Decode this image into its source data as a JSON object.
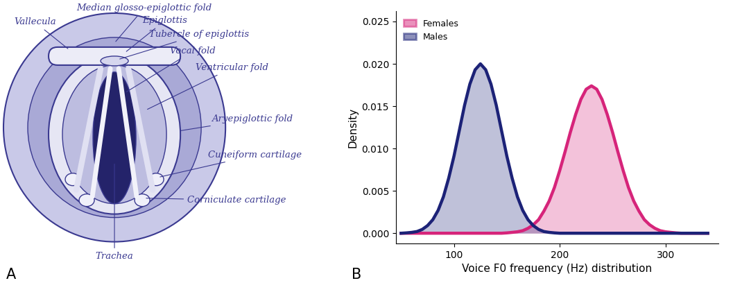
{
  "diagram": {
    "panel_label": "A",
    "labels": [
      "Vallecula",
      "Median glosso-epiglottic fold",
      "Epiglottis",
      "Tubercle of epiglottis",
      "Vocal fold",
      "Ventricular fold",
      "Aryepiglottic fold",
      "Cuneiform cartilage",
      "Corniculate cartilage",
      "Trachea"
    ]
  },
  "chart_data": {
    "panel_label": "B",
    "type": "area",
    "x_label": "Voice F0 frequency (Hz) distribution",
    "y_label": "Density",
    "x": [
      50,
      55,
      60,
      65,
      70,
      75,
      80,
      85,
      90,
      95,
      100,
      105,
      110,
      115,
      120,
      125,
      130,
      135,
      140,
      145,
      150,
      155,
      160,
      165,
      170,
      175,
      180,
      185,
      190,
      195,
      200,
      205,
      210,
      215,
      220,
      225,
      230,
      235,
      240,
      245,
      250,
      255,
      260,
      265,
      270,
      275,
      280,
      285,
      290,
      295,
      300,
      305,
      310,
      315,
      320,
      325,
      330,
      335,
      340
    ],
    "series": [
      {
        "name": "Females",
        "color": "#d6247a",
        "values": [
          0,
          0,
          0,
          0,
          0,
          0,
          0,
          0,
          0,
          0,
          0,
          0,
          0,
          0,
          0,
          0,
          0,
          0,
          0,
          0,
          4e-05,
          0.0001,
          0.00017,
          0.0003,
          0.00058,
          0.001,
          0.0016,
          0.0026,
          0.0038,
          0.0054,
          0.0074,
          0.0096,
          0.0119,
          0.014,
          0.0158,
          0.017,
          0.0174,
          0.017,
          0.0158,
          0.014,
          0.0119,
          0.0096,
          0.0074,
          0.0054,
          0.0038,
          0.0026,
          0.0016,
          0.001,
          0.00058,
          0.0003,
          0.00017,
          0.0001,
          4e-05,
          0,
          0,
          0,
          0,
          0,
          0
        ]
      },
      {
        "name": "Males",
        "color": "#1c2277",
        "values": [
          0,
          4e-05,
          0.0001,
          0.0002,
          0.00045,
          0.0009,
          0.0016,
          0.0027,
          0.0043,
          0.0065,
          0.0091,
          0.0121,
          0.0151,
          0.0176,
          0.0193,
          0.02,
          0.0193,
          0.0176,
          0.0151,
          0.0121,
          0.0091,
          0.0065,
          0.0043,
          0.0027,
          0.0016,
          0.0009,
          0.00045,
          0.0002,
          0.0001,
          4e-05,
          0,
          0,
          0,
          0,
          0,
          0,
          0,
          0,
          0,
          0,
          0,
          0,
          0,
          0,
          0,
          0,
          0,
          0,
          0,
          0,
          0,
          0,
          0,
          0,
          0,
          0,
          0,
          0,
          0
        ]
      }
    ],
    "xlim": [
      45,
      350
    ],
    "ylim": [
      -0.0012,
      0.0262
    ],
    "xticks": [
      100,
      200,
      300
    ],
    "yticks": [
      {
        "value": 0,
        "label": "0.000"
      },
      {
        "value": 0.005,
        "label": "0.005"
      },
      {
        "value": 0.01,
        "label": "0.010"
      },
      {
        "value": 0.015,
        "label": "0.015"
      },
      {
        "value": 0.02,
        "label": "0.020"
      },
      {
        "value": 0.025,
        "label": "0.025"
      }
    ],
    "legend": "upper left"
  }
}
